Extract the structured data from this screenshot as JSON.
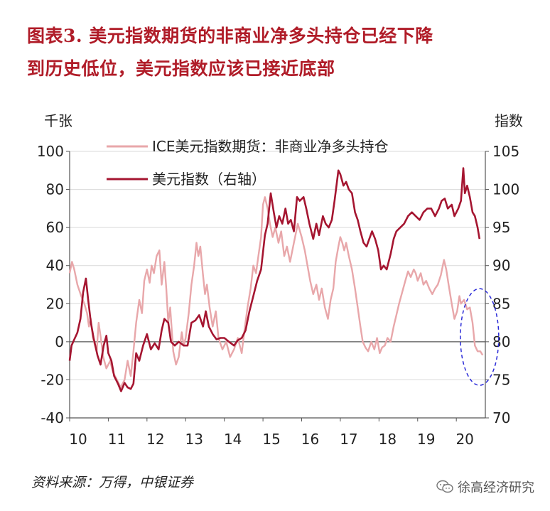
{
  "title": {
    "line1": "图表3. 美元指数期货的非商业净多头持仓已经下降",
    "line2": "到历史低位，美元指数应该已接近底部"
  },
  "source": "资料来源：万得，中银证券",
  "watermark": "徐高经济研究",
  "colors": {
    "pink": "#e8a7aa",
    "dark": "#a51530",
    "ellipse": "#2a2ad8",
    "title": "#b01c28"
  },
  "chart_data": {
    "type": "line",
    "left_axis": {
      "unit": "千张",
      "ylim": [
        -40,
        100
      ],
      "ticks": [
        100,
        80,
        60,
        40,
        20,
        0,
        -20,
        -40
      ]
    },
    "right_axis": {
      "unit": "指数",
      "ylim": [
        70,
        105
      ],
      "ticks": [
        105,
        100,
        95,
        90,
        85,
        80,
        75,
        70
      ]
    },
    "xlim": [
      2010,
      2020.75
    ],
    "x_ticks": [
      "10",
      "11",
      "12",
      "13",
      "14",
      "15",
      "16",
      "17",
      "18",
      "19",
      "20"
    ],
    "legend": {
      "placement": "top-center"
    },
    "annotation": {
      "shape": "dashed-ellipse",
      "x_center": 2020.6,
      "y_left_center": 2.5
    },
    "series": [
      {
        "name": "ICE美元指数期货：非商业净多头持仓",
        "axis": "left",
        "color": "#e8a7aa",
        "points": [
          [
            2010.0,
            36
          ],
          [
            2010.06,
            42
          ],
          [
            2010.12,
            38
          ],
          [
            2010.2,
            30
          ],
          [
            2010.3,
            24
          ],
          [
            2010.38,
            20
          ],
          [
            2010.45,
            15
          ],
          [
            2010.5,
            8
          ],
          [
            2010.55,
            12
          ],
          [
            2010.6,
            2
          ],
          [
            2010.7,
            -5
          ],
          [
            2010.75,
            10
          ],
          [
            2010.8,
            3
          ],
          [
            2010.87,
            -8
          ],
          [
            2010.95,
            -14
          ],
          [
            2011.05,
            -10
          ],
          [
            2011.12,
            -16
          ],
          [
            2011.2,
            -19
          ],
          [
            2011.32,
            -24
          ],
          [
            2011.42,
            -20
          ],
          [
            2011.5,
            -10
          ],
          [
            2011.58,
            -18
          ],
          [
            2011.65,
            -5
          ],
          [
            2011.72,
            10
          ],
          [
            2011.8,
            22
          ],
          [
            2011.87,
            15
          ],
          [
            2011.93,
            32
          ],
          [
            2012.0,
            38
          ],
          [
            2012.07,
            31
          ],
          [
            2012.12,
            40
          ],
          [
            2012.18,
            36
          ],
          [
            2012.25,
            45
          ],
          [
            2012.32,
            48
          ],
          [
            2012.38,
            30
          ],
          [
            2012.45,
            42
          ],
          [
            2012.5,
            28
          ],
          [
            2012.55,
            10
          ],
          [
            2012.6,
            18
          ],
          [
            2012.68,
            -5
          ],
          [
            2012.75,
            -12
          ],
          [
            2012.82,
            -8
          ],
          [
            2012.9,
            5
          ],
          [
            2012.95,
            -2
          ],
          [
            2013.0,
            2
          ],
          [
            2013.08,
            15
          ],
          [
            2013.15,
            30
          ],
          [
            2013.22,
            40
          ],
          [
            2013.28,
            52
          ],
          [
            2013.33,
            45
          ],
          [
            2013.38,
            50
          ],
          [
            2013.45,
            35
          ],
          [
            2013.5,
            25
          ],
          [
            2013.55,
            30
          ],
          [
            2013.62,
            18
          ],
          [
            2013.7,
            8
          ],
          [
            2013.78,
            16
          ],
          [
            2013.85,
            2
          ],
          [
            2013.95,
            -4
          ],
          [
            2014.05,
            0
          ],
          [
            2014.15,
            -8
          ],
          [
            2014.25,
            -4
          ],
          [
            2014.35,
            2
          ],
          [
            2014.45,
            -6
          ],
          [
            2014.52,
            6
          ],
          [
            2014.6,
            18
          ],
          [
            2014.68,
            28
          ],
          [
            2014.75,
            40
          ],
          [
            2014.82,
            36
          ],
          [
            2014.88,
            45
          ],
          [
            2014.95,
            55
          ],
          [
            2015.0,
            72
          ],
          [
            2015.05,
            76
          ],
          [
            2015.12,
            70
          ],
          [
            2015.18,
            62
          ],
          [
            2015.25,
            55
          ],
          [
            2015.32,
            60
          ],
          [
            2015.4,
            52
          ],
          [
            2015.47,
            58
          ],
          [
            2015.55,
            45
          ],
          [
            2015.62,
            50
          ],
          [
            2015.7,
            42
          ],
          [
            2015.8,
            52
          ],
          [
            2015.9,
            62
          ],
          [
            2016.0,
            55
          ],
          [
            2016.08,
            48
          ],
          [
            2016.15,
            40
          ],
          [
            2016.22,
            32
          ],
          [
            2016.3,
            25
          ],
          [
            2016.38,
            30
          ],
          [
            2016.45,
            22
          ],
          [
            2016.52,
            28
          ],
          [
            2016.6,
            18
          ],
          [
            2016.68,
            12
          ],
          [
            2016.75,
            22
          ],
          [
            2016.82,
            28
          ],
          [
            2016.88,
            42
          ],
          [
            2016.95,
            50
          ],
          [
            2017.0,
            55
          ],
          [
            2017.05,
            52
          ],
          [
            2017.1,
            48
          ],
          [
            2017.15,
            52
          ],
          [
            2017.22,
            45
          ],
          [
            2017.3,
            38
          ],
          [
            2017.38,
            28
          ],
          [
            2017.45,
            18
          ],
          [
            2017.52,
            8
          ],
          [
            2017.58,
            0
          ],
          [
            2017.65,
            -3
          ],
          [
            2017.72,
            -5
          ],
          [
            2017.8,
            0
          ],
          [
            2017.88,
            -4
          ],
          [
            2017.95,
            2
          ],
          [
            2018.02,
            -6
          ],
          [
            2018.08,
            -3
          ],
          [
            2018.15,
            -2
          ],
          [
            2018.22,
            2
          ],
          [
            2018.3,
            0
          ],
          [
            2018.38,
            8
          ],
          [
            2018.45,
            14
          ],
          [
            2018.52,
            20
          ],
          [
            2018.6,
            26
          ],
          [
            2018.68,
            32
          ],
          [
            2018.75,
            37
          ],
          [
            2018.82,
            34
          ],
          [
            2018.9,
            38
          ],
          [
            2018.95,
            36
          ],
          [
            2019.0,
            32
          ],
          [
            2019.08,
            36
          ],
          [
            2019.15,
            30
          ],
          [
            2019.22,
            32
          ],
          [
            2019.3,
            28
          ],
          [
            2019.38,
            25
          ],
          [
            2019.45,
            28
          ],
          [
            2019.52,
            30
          ],
          [
            2019.6,
            35
          ],
          [
            2019.68,
            43
          ],
          [
            2019.74,
            38
          ],
          [
            2019.8,
            30
          ],
          [
            2019.88,
            20
          ],
          [
            2019.95,
            12
          ],
          [
            2020.02,
            16
          ],
          [
            2020.08,
            24
          ],
          [
            2020.12,
            20
          ],
          [
            2020.2,
            22
          ],
          [
            2020.28,
            17
          ],
          [
            2020.35,
            18
          ],
          [
            2020.42,
            10
          ],
          [
            2020.48,
            -2
          ],
          [
            2020.55,
            -5
          ],
          [
            2020.62,
            -5
          ],
          [
            2020.68,
            -7
          ]
        ]
      },
      {
        "name": "美元指数（右轴）",
        "axis": "right",
        "color": "#a51530",
        "points": [
          [
            2010.0,
            77.5
          ],
          [
            2010.05,
            79.5
          ],
          [
            2010.12,
            80.3
          ],
          [
            2010.2,
            81.2
          ],
          [
            2010.28,
            83.0
          ],
          [
            2010.35,
            86.5
          ],
          [
            2010.42,
            88.3
          ],
          [
            2010.48,
            85.5
          ],
          [
            2010.55,
            82.5
          ],
          [
            2010.62,
            80.5
          ],
          [
            2010.72,
            78.2
          ],
          [
            2010.8,
            77.0
          ],
          [
            2010.88,
            79.5
          ],
          [
            2010.95,
            80.8
          ],
          [
            2011.0,
            78.5
          ],
          [
            2011.08,
            77.5
          ],
          [
            2011.15,
            75.5
          ],
          [
            2011.25,
            74.5
          ],
          [
            2011.33,
            73.5
          ],
          [
            2011.42,
            74.6
          ],
          [
            2011.5,
            74.0
          ],
          [
            2011.58,
            73.8
          ],
          [
            2011.65,
            74.5
          ],
          [
            2011.72,
            78.5
          ],
          [
            2011.8,
            77.5
          ],
          [
            2011.9,
            79.5
          ],
          [
            2012.0,
            81.0
          ],
          [
            2012.1,
            79.0
          ],
          [
            2012.2,
            79.8
          ],
          [
            2012.3,
            79.0
          ],
          [
            2012.38,
            81.5
          ],
          [
            2012.45,
            83.0
          ],
          [
            2012.55,
            82.5
          ],
          [
            2012.62,
            80.0
          ],
          [
            2012.72,
            79.5
          ],
          [
            2012.82,
            80.0
          ],
          [
            2012.95,
            79.5
          ],
          [
            2013.05,
            79.5
          ],
          [
            2013.15,
            82.5
          ],
          [
            2013.25,
            82.8
          ],
          [
            2013.35,
            83.5
          ],
          [
            2013.45,
            82.0
          ],
          [
            2013.52,
            84.0
          ],
          [
            2013.6,
            82.0
          ],
          [
            2013.7,
            81.0
          ],
          [
            2013.8,
            80.3
          ],
          [
            2013.9,
            80.5
          ],
          [
            2014.0,
            80.5
          ],
          [
            2014.12,
            80.0
          ],
          [
            2014.25,
            79.5
          ],
          [
            2014.35,
            80.2
          ],
          [
            2014.45,
            80.5
          ],
          [
            2014.55,
            81.5
          ],
          [
            2014.65,
            84.0
          ],
          [
            2014.75,
            86.0
          ],
          [
            2014.85,
            88.0
          ],
          [
            2014.95,
            89.5
          ],
          [
            2015.05,
            94.0
          ],
          [
            2015.12,
            95.5
          ],
          [
            2015.2,
            99.5
          ],
          [
            2015.28,
            97.0
          ],
          [
            2015.35,
            95.0
          ],
          [
            2015.42,
            96.5
          ],
          [
            2015.5,
            95.5
          ],
          [
            2015.58,
            97.5
          ],
          [
            2015.65,
            95.5
          ],
          [
            2015.72,
            96.0
          ],
          [
            2015.8,
            94.5
          ],
          [
            2015.88,
            99.0
          ],
          [
            2015.95,
            98.5
          ],
          [
            2016.05,
            99.0
          ],
          [
            2016.12,
            97.5
          ],
          [
            2016.2,
            95.5
          ],
          [
            2016.3,
            93.5
          ],
          [
            2016.38,
            95.5
          ],
          [
            2016.45,
            94.0
          ],
          [
            2016.55,
            96.5
          ],
          [
            2016.62,
            95.5
          ],
          [
            2016.7,
            95.0
          ],
          [
            2016.78,
            96.0
          ],
          [
            2016.85,
            98.5
          ],
          [
            2016.95,
            102.5
          ],
          [
            2017.0,
            102.0
          ],
          [
            2017.08,
            100.5
          ],
          [
            2017.15,
            101.0
          ],
          [
            2017.22,
            100.0
          ],
          [
            2017.3,
            99.5
          ],
          [
            2017.38,
            97.0
          ],
          [
            2017.45,
            96.0
          ],
          [
            2017.52,
            94.5
          ],
          [
            2017.6,
            93.0
          ],
          [
            2017.68,
            92.5
          ],
          [
            2017.75,
            93.5
          ],
          [
            2017.82,
            94.5
          ],
          [
            2017.9,
            93.5
          ],
          [
            2017.98,
            92.0
          ],
          [
            2018.05,
            89.5
          ],
          [
            2018.12,
            90.0
          ],
          [
            2018.2,
            89.5
          ],
          [
            2018.3,
            91.5
          ],
          [
            2018.38,
            93.5
          ],
          [
            2018.45,
            94.5
          ],
          [
            2018.55,
            95.0
          ],
          [
            2018.65,
            95.5
          ],
          [
            2018.75,
            96.5
          ],
          [
            2018.85,
            97.0
          ],
          [
            2018.95,
            96.5
          ],
          [
            2019.05,
            96.0
          ],
          [
            2019.15,
            97.0
          ],
          [
            2019.25,
            97.5
          ],
          [
            2019.35,
            97.5
          ],
          [
            2019.45,
            96.5
          ],
          [
            2019.55,
            97.5
          ],
          [
            2019.62,
            98.5
          ],
          [
            2019.7,
            98.8
          ],
          [
            2019.78,
            97.5
          ],
          [
            2019.88,
            98.0
          ],
          [
            2019.95,
            96.5
          ],
          [
            2020.05,
            97.5
          ],
          [
            2020.12,
            98.5
          ],
          [
            2020.18,
            102.8
          ],
          [
            2020.22,
            99.5
          ],
          [
            2020.28,
            100.5
          ],
          [
            2020.35,
            99.0
          ],
          [
            2020.42,
            97.0
          ],
          [
            2020.48,
            96.5
          ],
          [
            2020.55,
            95.0
          ],
          [
            2020.6,
            93.5
          ]
        ]
      }
    ]
  }
}
